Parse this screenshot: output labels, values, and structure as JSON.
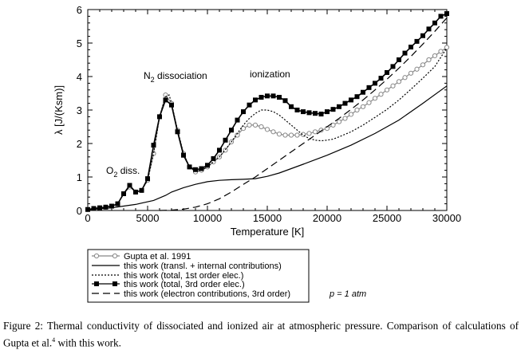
{
  "chart_data": {
    "type": "line",
    "title": "",
    "xlabel": "Temperature [K]",
    "ylabel": "λ [J/(Ksm)]",
    "xlim": [
      0,
      30000
    ],
    "ylim": [
      0,
      6
    ],
    "xticks": [
      0,
      5000,
      10000,
      15000,
      20000,
      25000,
      30000
    ],
    "yticks": [
      0,
      1,
      2,
      3,
      4,
      5,
      6
    ],
    "grid": false,
    "legend_position": "below-plot",
    "annotations": [
      {
        "text": "N",
        "sub": "2",
        "rest": " dissociation",
        "x": 6700,
        "y": 3.5
      },
      {
        "text": "ionization",
        "x": 15000,
        "y": 3.5
      },
      {
        "text": "O",
        "sub": "2",
        "rest": " diss.",
        "x": 3300,
        "y": 0.85
      }
    ],
    "pressure_note": "p = 1 atm",
    "series": [
      {
        "name": "Gupta et al. 1991",
        "style": "open-circles",
        "color": "#888888",
        "x": [
          0,
          500,
          1000,
          1500,
          2000,
          2500,
          3000,
          3500,
          4000,
          4500,
          5000,
          5500,
          6000,
          6500,
          7000,
          7500,
          8000,
          8500,
          9000,
          9500,
          10000,
          10500,
          11000,
          11500,
          12000,
          12500,
          13000,
          13500,
          14000,
          14500,
          15000,
          15500,
          16000,
          16500,
          17000,
          17500,
          18000,
          18500,
          19000,
          19500,
          20000,
          20500,
          21000,
          21500,
          22000,
          22500,
          23000,
          23500,
          24000,
          24500,
          25000,
          25500,
          26000,
          26500,
          27000,
          27500,
          28000,
          28500,
          29000,
          29500,
          30000
        ],
        "values": [
          0.03,
          0.06,
          0.08,
          0.1,
          0.13,
          0.2,
          0.5,
          0.7,
          0.55,
          0.6,
          0.9,
          1.7,
          2.8,
          3.45,
          3.2,
          2.4,
          1.7,
          1.3,
          1.15,
          1.2,
          1.3,
          1.45,
          1.6,
          1.8,
          2.05,
          2.25,
          2.45,
          2.55,
          2.55,
          2.5,
          2.42,
          2.35,
          2.28,
          2.25,
          2.25,
          2.25,
          2.27,
          2.3,
          2.35,
          2.4,
          2.45,
          2.55,
          2.65,
          2.75,
          2.87,
          3.0,
          3.1,
          3.22,
          3.35,
          3.47,
          3.6,
          3.72,
          3.85,
          3.97,
          4.1,
          4.22,
          4.35,
          4.5,
          4.62,
          4.75,
          4.87
        ]
      },
      {
        "name": "this work (transl. + internal contributions)",
        "style": "solid",
        "color": "#000000",
        "x": [
          0,
          2000,
          4000,
          5500,
          6500,
          7000,
          8000,
          9000,
          10000,
          11000,
          12000,
          13000,
          14000,
          15000,
          16000,
          18000,
          20000,
          22000,
          24000,
          26000,
          28000,
          30000
        ],
        "values": [
          0.02,
          0.08,
          0.18,
          0.3,
          0.45,
          0.55,
          0.68,
          0.78,
          0.86,
          0.9,
          0.92,
          0.93,
          0.95,
          1.02,
          1.12,
          1.38,
          1.65,
          1.95,
          2.3,
          2.7,
          3.2,
          3.72
        ]
      },
      {
        "name": "this work (total, 1st order elec.)",
        "style": "dotted",
        "color": "#000000",
        "x": [
          0,
          1000,
          2000,
          2500,
          3000,
          3500,
          4000,
          4500,
          5000,
          5500,
          6000,
          6500,
          6800,
          7000,
          7500,
          8000,
          8500,
          9000,
          9500,
          10000,
          10500,
          11000,
          11500,
          12000,
          12500,
          13000,
          13500,
          14000,
          14500,
          15000,
          15500,
          16000,
          16500,
          17000,
          17500,
          18000,
          18500,
          19000,
          19500,
          20000,
          20500,
          21000,
          22000,
          23000,
          24000,
          25000,
          26000,
          27000,
          28000,
          29000,
          30000
        ],
        "values": [
          0.03,
          0.08,
          0.13,
          0.2,
          0.5,
          0.72,
          0.56,
          0.62,
          0.9,
          1.7,
          2.8,
          3.4,
          3.45,
          3.2,
          2.4,
          1.7,
          1.3,
          1.17,
          1.2,
          1.3,
          1.45,
          1.6,
          1.82,
          2.05,
          2.3,
          2.55,
          2.75,
          2.9,
          3.0,
          3.0,
          2.95,
          2.85,
          2.7,
          2.55,
          2.4,
          2.25,
          2.15,
          2.1,
          2.08,
          2.1,
          2.13,
          2.2,
          2.35,
          2.55,
          2.78,
          3.02,
          3.3,
          3.62,
          3.95,
          4.3,
          4.85
        ]
      },
      {
        "name": "this work (total, 3rd order elec.)",
        "style": "solid-filled-squares",
        "color": "#000000",
        "x": [
          0,
          500,
          1000,
          1500,
          2000,
          2500,
          3000,
          3500,
          4000,
          4500,
          5000,
          5500,
          6000,
          6500,
          7000,
          7500,
          8000,
          8500,
          9000,
          9500,
          10000,
          10500,
          11000,
          11500,
          12000,
          12500,
          13000,
          13500,
          14000,
          14500,
          15000,
          15500,
          16000,
          16500,
          17000,
          17500,
          18000,
          18500,
          19000,
          19500,
          20000,
          20500,
          21000,
          21500,
          22000,
          22500,
          23000,
          23500,
          24000,
          24500,
          25000,
          25500,
          26000,
          26500,
          27000,
          27500,
          28000,
          28500,
          29000,
          29500,
          30000
        ],
        "values": [
          0.03,
          0.06,
          0.08,
          0.1,
          0.13,
          0.2,
          0.5,
          0.75,
          0.55,
          0.6,
          0.95,
          1.95,
          2.8,
          3.3,
          3.15,
          2.35,
          1.65,
          1.3,
          1.22,
          1.25,
          1.35,
          1.55,
          1.8,
          2.1,
          2.4,
          2.7,
          2.95,
          3.15,
          3.3,
          3.38,
          3.42,
          3.42,
          3.38,
          3.28,
          3.1,
          3.0,
          2.95,
          2.92,
          2.9,
          2.88,
          2.95,
          3.02,
          3.1,
          3.2,
          3.3,
          3.4,
          3.53,
          3.67,
          3.8,
          3.95,
          4.12,
          4.3,
          4.5,
          4.7,
          4.88,
          5.05,
          5.22,
          5.42,
          5.6,
          5.8,
          5.88
        ]
      },
      {
        "name": "this work (electron contributions, 3rd order)",
        "style": "dashed",
        "color": "#000000",
        "x": [
          6000,
          7000,
          8000,
          9000,
          10000,
          11000,
          12000,
          13000,
          14000,
          15000,
          16000,
          17000,
          18000,
          19000,
          20000,
          21000,
          22000,
          23000,
          24000,
          25000,
          26000,
          27000,
          28000,
          29000,
          30000
        ],
        "values": [
          0.0,
          0.01,
          0.04,
          0.1,
          0.2,
          0.35,
          0.55,
          0.78,
          1.0,
          1.25,
          1.5,
          1.75,
          2.0,
          2.25,
          2.5,
          2.75,
          3.02,
          3.3,
          3.6,
          3.92,
          4.25,
          4.6,
          4.97,
          5.35,
          5.75
        ]
      }
    ]
  },
  "caption": {
    "text_before": "Figure 2: Thermal conductivity of dissociated and ionized air at atmospheric pressure. Comparison of calculations of Gupta et al.",
    "ref": "4",
    "text_after": " with this work."
  }
}
